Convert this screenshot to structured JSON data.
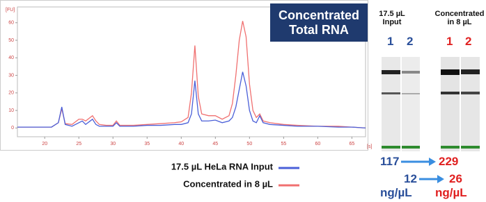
{
  "chart_data": {
    "type": "line",
    "title": "Concentrated Total RNA",
    "x_label": "[s]",
    "y_label": "[FU]",
    "x": [
      16,
      18,
      20,
      21,
      22,
      22.5,
      23,
      24,
      25,
      25.5,
      26,
      27,
      27.5,
      28,
      29,
      30,
      30.5,
      31,
      33,
      35,
      37,
      39,
      40,
      41,
      41.5,
      42,
      42.5,
      43,
      44,
      45,
      46,
      47,
      47.5,
      48,
      48.5,
      49,
      49.5,
      50,
      50.5,
      51,
      51.5,
      52,
      53,
      55,
      57,
      60,
      63,
      65,
      67
    ],
    "series": [
      {
        "name": "17.5 µL HeLa RNA Input",
        "color": "#4a5fd8",
        "values": [
          0.5,
          0.5,
          0.5,
          0.5,
          3,
          12,
          2,
          1,
          3,
          4,
          2,
          5,
          2,
          1,
          1,
          1,
          3,
          1,
          1,
          1.5,
          1.5,
          2,
          2,
          3,
          8,
          27,
          8,
          4,
          4,
          4.5,
          3,
          4,
          6,
          12,
          22,
          32,
          24,
          10,
          4,
          3,
          7,
          3,
          2,
          1.5,
          1,
          1,
          0.5,
          0.5,
          0
        ]
      },
      {
        "name": "Concentrated in 8 µL",
        "color": "#f07070",
        "values": [
          0.5,
          0.5,
          0.5,
          0.5,
          3,
          11,
          2.5,
          2,
          5,
          5,
          4,
          7,
          4,
          2,
          1.5,
          1.5,
          4,
          1.5,
          1.5,
          2,
          2.5,
          3,
          3.5,
          6,
          20,
          47,
          18,
          8,
          7,
          7,
          5,
          7,
          14,
          30,
          50,
          61,
          52,
          25,
          10,
          6,
          8,
          4,
          3,
          2,
          1.5,
          1,
          1,
          0.5,
          0
        ]
      }
    ],
    "xlim": [
      16,
      67
    ],
    "ylim": [
      -5,
      69
    ],
    "xticks": [
      20,
      25,
      30,
      35,
      40,
      45,
      50,
      55,
      60,
      65
    ],
    "yticks": [
      0,
      10,
      20,
      30,
      40,
      50,
      60
    ],
    "grid": false,
    "legend": "bottom"
  },
  "gel": {
    "headers": [
      "17.5 µL Input",
      "Concentrated in 8 µL"
    ],
    "lanes": [
      "1",
      "2",
      "1",
      "2"
    ],
    "rows": [
      {
        "from": 117,
        "to": 229
      },
      {
        "from": 12,
        "to": 26
      }
    ],
    "unit": "ng/µL"
  }
}
